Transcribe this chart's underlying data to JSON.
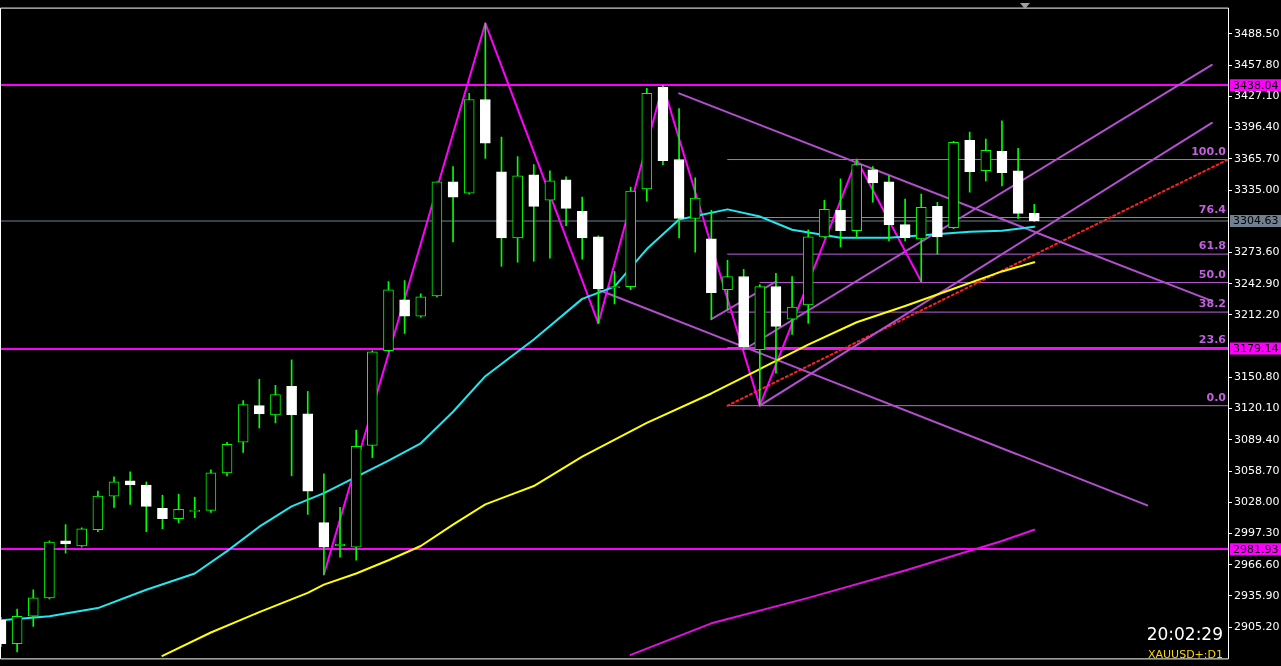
{
  "chart_data": {
    "type": "candlestick",
    "categories": [
      null,
      null,
      null,
      null,
      null,
      null,
      null,
      null,
      null,
      null,
      null,
      null,
      null,
      null,
      null,
      null,
      null,
      null,
      null,
      null,
      null,
      null,
      null,
      null,
      null,
      null,
      null,
      null,
      null,
      null,
      null,
      null,
      null,
      null,
      null,
      null,
      null,
      null,
      null,
      null,
      null,
      null,
      null,
      null,
      null,
      null,
      null,
      null,
      null,
      null,
      null,
      null,
      null,
      null,
      null,
      null,
      null,
      null,
      null,
      null,
      null,
      null,
      null,
      null,
      null,
      null,
      null,
      null,
      null,
      null,
      null,
      null,
      null,
      null,
      null,
      null,
      null
    ],
    "color": "#00ff00",
    "ohlc": [
      [
        2912,
        2915,
        2886,
        2889
      ],
      [
        2889,
        2923,
        2881,
        2916
      ],
      [
        2916,
        2942,
        2906,
        2934
      ],
      [
        2934,
        2990,
        2933,
        2989
      ],
      [
        2990,
        3006,
        2978,
        2987
      ],
      [
        2985,
        3003,
        2984,
        3002
      ],
      [
        3001,
        3039,
        2999,
        3034
      ],
      [
        3034,
        3053,
        3023,
        3048
      ],
      [
        3049,
        3058,
        3026,
        3045
      ],
      [
        3045,
        3048,
        2999,
        3024
      ],
      [
        3022,
        3035,
        3002,
        3012
      ],
      [
        3012,
        3036,
        3008,
        3021
      ],
      [
        3019,
        3033,
        3013,
        3020
      ],
      [
        3020,
        3060,
        3018,
        3057
      ],
      [
        3057,
        3087,
        3054,
        3085
      ],
      [
        3087,
        3128,
        3077,
        3124
      ],
      [
        3123,
        3149,
        3101,
        3115
      ],
      [
        3114,
        3143,
        3106,
        3134
      ],
      [
        3142,
        3168,
        3054,
        3114
      ],
      [
        3115,
        3137,
        3016,
        3039
      ],
      [
        3008,
        3056,
        2957,
        2984
      ],
      [
        2985,
        3023,
        2974,
        2987
      ],
      [
        2984,
        3099,
        2971,
        3083
      ],
      [
        3084,
        3177,
        3072,
        3176
      ],
      [
        3177,
        3245,
        3176,
        3237
      ],
      [
        3227,
        3246,
        3194,
        3211
      ],
      [
        3211,
        3233,
        3210,
        3230
      ],
      [
        3231,
        3343,
        3230,
        3343
      ],
      [
        3343,
        3358,
        3284,
        3328
      ],
      [
        3332,
        3430,
        3331,
        3424
      ],
      [
        3424,
        3499,
        3366,
        3381
      ],
      [
        3353,
        3387,
        3260,
        3288
      ],
      [
        3288,
        3368,
        3264,
        3349
      ],
      [
        3350,
        3360,
        3265,
        3319
      ],
      [
        3325,
        3354,
        3268,
        3344
      ],
      [
        3345,
        3348,
        3300,
        3317
      ],
      [
        3314,
        3328,
        3267,
        3288
      ],
      [
        3289,
        3290,
        3204,
        3238
      ],
      [
        3239,
        3255,
        3223,
        3240
      ],
      [
        3240,
        3338,
        3237,
        3334
      ],
      [
        3336,
        3435,
        3324,
        3430
      ],
      [
        3436,
        3438,
        3360,
        3364
      ],
      [
        3365,
        3415,
        3288,
        3307
      ],
      [
        3307,
        3347,
        3274,
        3327
      ],
      [
        3287,
        3315,
        3208,
        3234
      ],
      [
        3237,
        3266,
        3217,
        3250
      ],
      [
        3250,
        3257,
        3178,
        3181
      ],
      [
        3178,
        3242,
        3123,
        3240
      ],
      [
        3240,
        3253,
        3155,
        3201
      ],
      [
        3208,
        3250,
        3193,
        3220
      ],
      [
        3222,
        3296,
        3204,
        3289
      ],
      [
        3289,
        3325,
        3288,
        3316
      ],
      [
        3315,
        3346,
        3279,
        3295
      ],
      [
        3295,
        3365,
        3288,
        3360
      ],
      [
        3355,
        3358,
        3323,
        3342
      ],
      [
        3343,
        3349,
        3285,
        3301
      ],
      [
        3301,
        3326,
        3285,
        3288
      ],
      [
        3287,
        3331,
        3245,
        3318
      ],
      [
        3319,
        3323,
        3272,
        3289
      ],
      [
        3298,
        3383,
        3297,
        3382
      ],
      [
        3384,
        3392,
        3333,
        3353
      ],
      [
        3354,
        3385,
        3344,
        3374
      ],
      [
        3373,
        3403,
        3339,
        3352
      ],
      [
        3354,
        3376,
        3307,
        3312
      ],
      [
        3312,
        3321,
        3304,
        3304.63
      ],
      null,
      null,
      null,
      null,
      null,
      null,
      null,
      null,
      null,
      null,
      null,
      null
    ],
    "colors": [
      "#ffffff",
      null,
      null,
      null,
      "#ffffff",
      null,
      null,
      null,
      "#ffffff",
      "#ffffff",
      "#ffffff",
      null,
      null,
      null,
      null,
      null,
      "#ffffff",
      null,
      "#ffffff",
      "#ffffff",
      "#ffffff",
      null,
      null,
      null,
      null,
      "#ffffff",
      null,
      null,
      "#ffffff",
      null,
      "#ffffff",
      "#ffffff",
      null,
      "#ffffff",
      null,
      "#ffffff",
      "#ffffff",
      "#ffffff",
      null,
      null,
      null,
      "#ffffff",
      "#ffffff",
      null,
      "#ffffff",
      null,
      "#ffffff",
      null,
      "#ffffff",
      null,
      null,
      null,
      "#ffffff",
      null,
      "#ffffff",
      "#ffffff",
      "#ffffff",
      null,
      "#ffffff",
      null,
      "#ffffff",
      null,
      "#ffffff",
      "#ffffff",
      "#ffffff",
      null,
      null,
      null,
      null,
      null,
      null,
      null,
      null,
      null,
      null,
      null,
      null
    ],
    "series": [
      {
        "type": "line",
        "color": "#20e8f0",
        "values": [
          2912,
          null,
          null,
          2916,
          null,
          null,
          2924,
          null,
          null,
          2942,
          null,
          null,
          2958,
          null,
          2980,
          null,
          3004,
          null,
          3024,
          null,
          3037,
          null,
          null,
          null,
          3069,
          null,
          3086,
          null,
          3117,
          null,
          3152,
          null,
          null,
          3188,
          null,
          null,
          3228,
          null,
          3240,
          null,
          3277,
          null,
          3306,
          null,
          null,
          3316,
          null,
          3309,
          null,
          3296,
          null,
          null,
          3288,
          null,
          null,
          3288,
          null,
          null,
          null,
          null,
          3294,
          null,
          3295,
          null,
          3299,
          null,
          null,
          null,
          null,
          null,
          null,
          null,
          null,
          null,
          null,
          null,
          null
        ]
      },
      {
        "type": "line",
        "color": "#ffff00",
        "values": [
          null,
          null,
          null,
          null,
          null,
          null,
          null,
          null,
          null,
          null,
          2877,
          null,
          null,
          2900,
          null,
          null,
          2920,
          null,
          null,
          2939,
          2947,
          null,
          2958,
          null,
          2971,
          null,
          2985,
          null,
          3006,
          null,
          3026,
          null,
          null,
          3044,
          null,
          null,
          3073,
          null,
          null,
          null,
          3106,
          null,
          null,
          null,
          3135,
          null,
          null,
          3159,
          null,
          null,
          3183,
          null,
          null,
          3205,
          null,
          null,
          3221,
          null,
          null,
          3238,
          null,
          null,
          3255,
          null,
          3264,
          null,
          null,
          null,
          null,
          null,
          null,
          null,
          null,
          null,
          null,
          null,
          null
        ]
      },
      {
        "type": "line",
        "color": "#e010e0",
        "values": [
          null,
          null,
          null,
          null,
          null,
          null,
          null,
          null,
          null,
          null,
          null,
          null,
          null,
          null,
          null,
          null,
          null,
          null,
          null,
          null,
          null,
          null,
          null,
          null,
          null,
          null,
          null,
          null,
          null,
          null,
          null,
          null,
          null,
          null,
          null,
          null,
          null,
          null,
          null,
          2878,
          null,
          null,
          null,
          null,
          2909,
          null,
          null,
          null,
          null,
          null,
          2934,
          null,
          null,
          null,
          null,
          null,
          2961,
          null,
          null,
          null,
          null,
          null,
          2990,
          null,
          3001,
          null,
          null,
          null,
          null,
          null,
          null,
          null,
          null,
          null,
          null,
          null,
          null
        ]
      },
      {
        "type": "line",
        "color": "#ff00ff",
        "values": [
          null,
          null,
          null,
          null,
          null,
          null,
          null,
          null,
          null,
          null,
          null,
          null,
          null,
          null,
          null,
          null,
          null,
          null,
          null,
          null,
          2957,
          null,
          null,
          null,
          null,
          null,
          null,
          null,
          null,
          null,
          3499,
          null,
          null,
          null,
          null,
          null,
          null,
          3204,
          null,
          null,
          null,
          3438,
          null,
          null,
          null,
          null,
          null,
          3123,
          null,
          null,
          null,
          null,
          null,
          3365,
          null,
          null,
          null,
          3245,
          null,
          null,
          null,
          null,
          null,
          null,
          null,
          null,
          null,
          null,
          null,
          null,
          null,
          null,
          null,
          null,
          null,
          null,
          null
        ]
      },
      {
        "type": "line",
        "color": "#b44fd0",
        "values": [
          null,
          null,
          null,
          null,
          null,
          null,
          null,
          null,
          null,
          null,
          null,
          null,
          null,
          null,
          null,
          null,
          null,
          null,
          null,
          null,
          null,
          null,
          null,
          null,
          null,
          null,
          null,
          null,
          null,
          null,
          null,
          null,
          null,
          null,
          null,
          null,
          null,
          null,
          null,
          null,
          null,
          null,
          3430,
          null,
          null,
          null,
          null,
          null,
          null,
          null,
          null,
          null,
          null,
          null,
          null,
          null,
          null,
          null,
          null,
          null,
          null,
          null,
          null,
          null,
          null,
          null,
          null,
          null,
          null,
          null,
          null,
          null,
          null,
          null,
          null,
          3226,
          null
        ]
      },
      {
        "type": "line",
        "color": "#b44fd0",
        "values": [
          null,
          null,
          null,
          null,
          null,
          null,
          null,
          null,
          null,
          null,
          null,
          null,
          null,
          null,
          null,
          null,
          null,
          null,
          null,
          null,
          null,
          null,
          null,
          null,
          null,
          null,
          null,
          null,
          null,
          null,
          null,
          null,
          null,
          null,
          null,
          null,
          null,
          3237,
          null,
          null,
          null,
          null,
          null,
          null,
          null,
          null,
          null,
          null,
          null,
          null,
          null,
          null,
          null,
          null,
          null,
          null,
          null,
          null,
          null,
          null,
          null,
          null,
          null,
          null,
          null,
          null,
          null,
          null,
          null,
          null,
          null,
          3025,
          null,
          null,
          null,
          null,
          null
        ]
      },
      {
        "type": "line",
        "color": "#b44fd0",
        "values": [
          null,
          null,
          null,
          null,
          null,
          null,
          null,
          null,
          null,
          null,
          null,
          null,
          null,
          null,
          null,
          null,
          null,
          null,
          null,
          null,
          null,
          null,
          null,
          null,
          null,
          null,
          null,
          null,
          null,
          null,
          null,
          null,
          null,
          null,
          null,
          null,
          null,
          null,
          null,
          null,
          null,
          null,
          null,
          null,
          null,
          null,
          3178,
          null,
          null,
          null,
          null,
          null,
          null,
          null,
          null,
          null,
          null,
          null,
          null,
          null,
          null,
          null,
          null,
          null,
          null,
          null,
          null,
          null,
          null,
          null,
          null,
          null,
          null,
          null,
          null,
          3458,
          null
        ]
      },
      {
        "type": "line",
        "color": "#b44fd0",
        "values": [
          null,
          null,
          null,
          null,
          null,
          null,
          null,
          null,
          null,
          null,
          null,
          null,
          null,
          null,
          null,
          null,
          null,
          null,
          null,
          null,
          null,
          null,
          null,
          null,
          null,
          null,
          null,
          null,
          null,
          null,
          null,
          null,
          null,
          null,
          null,
          null,
          null,
          null,
          null,
          null,
          null,
          null,
          null,
          null,
          null,
          null,
          null,
          3123,
          null,
          null,
          null,
          null,
          null,
          null,
          null,
          null,
          null,
          null,
          null,
          null,
          null,
          null,
          null,
          null,
          null,
          null,
          null,
          null,
          null,
          null,
          null,
          null,
          null,
          null,
          null,
          3401,
          null
        ]
      },
      {
        "type": "line",
        "color": "#b44fd0",
        "values": [
          null,
          null,
          null,
          null,
          null,
          null,
          null,
          null,
          null,
          null,
          null,
          null,
          null,
          null,
          null,
          null,
          null,
          null,
          null,
          null,
          null,
          null,
          null,
          null,
          null,
          null,
          null,
          null,
          null,
          null,
          null,
          null,
          null,
          null,
          null,
          null,
          null,
          null,
          null,
          null,
          null,
          null,
          null,
          null,
          3208,
          null,
          null,
          null,
          3245,
          null,
          null,
          null,
          null,
          null,
          null,
          null,
          null,
          null,
          null,
          null,
          null,
          null,
          null,
          null,
          null,
          null,
          null,
          null,
          null,
          null,
          null,
          null,
          null,
          null,
          null,
          null,
          null
        ]
      },
      {
        "type": "line",
        "color": "#ff2020",
        "line_style": "dotted",
        "values": [
          null,
          null,
          null,
          null,
          null,
          null,
          null,
          null,
          null,
          null,
          null,
          null,
          null,
          null,
          null,
          null,
          null,
          null,
          null,
          null,
          null,
          null,
          null,
          null,
          null,
          null,
          null,
          null,
          null,
          null,
          null,
          null,
          null,
          null,
          null,
          null,
          null,
          null,
          null,
          null,
          null,
          null,
          null,
          null,
          null,
          3123,
          null,
          null,
          null,
          null,
          null,
          null,
          null,
          null,
          null,
          null,
          null,
          null,
          null,
          null,
          null,
          null,
          null,
          null,
          null,
          null,
          null,
          null,
          null,
          null,
          null,
          null,
          null,
          null,
          null,
          null,
          3365
        ]
      },
      {
        "type": "line",
        "name": "100.0",
        "color": "#c060e0",
        "values": [
          null,
          null,
          null,
          null,
          null,
          null,
          null,
          null,
          null,
          null,
          null,
          null,
          null,
          null,
          null,
          null,
          null,
          null,
          null,
          null,
          null,
          null,
          null,
          null,
          null,
          null,
          null,
          null,
          null,
          null,
          null,
          null,
          null,
          null,
          null,
          null,
          null,
          null,
          null,
          null,
          null,
          null,
          null,
          null,
          null,
          3365,
          null,
          null,
          null,
          null,
          null,
          null,
          null,
          null,
          null,
          null,
          null,
          null,
          null,
          null,
          null,
          null,
          null,
          null,
          null,
          null,
          null,
          null,
          null,
          null,
          null,
          null,
          null,
          null,
          null,
          null,
          3365
        ]
      },
      {
        "type": "line",
        "name": "76.4",
        "color": "#c060e0",
        "values": [
          null,
          null,
          null,
          null,
          null,
          null,
          null,
          null,
          null,
          null,
          null,
          null,
          null,
          null,
          null,
          null,
          null,
          null,
          null,
          null,
          null,
          null,
          null,
          null,
          null,
          null,
          null,
          null,
          null,
          null,
          null,
          null,
          null,
          null,
          null,
          null,
          null,
          null,
          null,
          null,
          null,
          null,
          null,
          null,
          null,
          3308,
          null,
          null,
          null,
          null,
          null,
          null,
          null,
          null,
          null,
          null,
          null,
          null,
          null,
          null,
          null,
          null,
          null,
          null,
          null,
          null,
          null,
          null,
          null,
          null,
          null,
          null,
          null,
          null,
          null,
          null,
          3308
        ]
      },
      {
        "type": "line",
        "name": "61.8",
        "color": "#c060e0",
        "values": [
          null,
          null,
          null,
          null,
          null,
          null,
          null,
          null,
          null,
          null,
          null,
          null,
          null,
          null,
          null,
          null,
          null,
          null,
          null,
          null,
          null,
          null,
          null,
          null,
          null,
          null,
          null,
          null,
          null,
          null,
          null,
          null,
          null,
          null,
          null,
          null,
          null,
          null,
          null,
          null,
          null,
          null,
          null,
          null,
          null,
          3272,
          null,
          null,
          null,
          null,
          null,
          null,
          null,
          null,
          null,
          null,
          null,
          null,
          null,
          null,
          null,
          null,
          null,
          null,
          null,
          null,
          null,
          null,
          null,
          null,
          null,
          null,
          null,
          null,
          null,
          null,
          3272
        ]
      },
      {
        "type": "line",
        "name": "50.0",
        "color": "#c060e0",
        "values": [
          null,
          null,
          null,
          null,
          null,
          null,
          null,
          null,
          null,
          null,
          null,
          null,
          null,
          null,
          null,
          null,
          null,
          null,
          null,
          null,
          null,
          null,
          null,
          null,
          null,
          null,
          null,
          null,
          null,
          null,
          null,
          null,
          null,
          null,
          null,
          null,
          null,
          null,
          null,
          null,
          null,
          null,
          null,
          null,
          null,
          null,
          null,
          3244,
          null,
          null,
          null,
          null,
          null,
          null,
          null,
          null,
          null,
          null,
          null,
          null,
          null,
          null,
          null,
          null,
          null,
          null,
          null,
          null,
          null,
          null,
          null,
          null,
          null,
          null,
          null,
          null,
          3244
        ]
      },
      {
        "type": "line",
        "name": "38.2",
        "color": "#c060e0",
        "values": [
          null,
          null,
          null,
          null,
          null,
          null,
          null,
          null,
          null,
          null,
          null,
          null,
          null,
          null,
          null,
          null,
          null,
          null,
          null,
          null,
          null,
          null,
          null,
          null,
          null,
          null,
          null,
          null,
          null,
          null,
          null,
          null,
          null,
          null,
          null,
          null,
          null,
          null,
          null,
          null,
          null,
          null,
          null,
          null,
          null,
          3215,
          null,
          null,
          null,
          null,
          null,
          null,
          null,
          null,
          null,
          null,
          null,
          null,
          null,
          null,
          null,
          null,
          null,
          null,
          null,
          null,
          null,
          null,
          null,
          null,
          null,
          null,
          null,
          null,
          null,
          null,
          3215
        ]
      },
      {
        "type": "line",
        "name": "23.6",
        "color": "#c060e0",
        "values": [
          null,
          null,
          null,
          null,
          null,
          null,
          null,
          null,
          null,
          null,
          null,
          null,
          null,
          null,
          null,
          null,
          null,
          null,
          null,
          null,
          null,
          null,
          null,
          null,
          null,
          null,
          null,
          null,
          null,
          null,
          null,
          null,
          null,
          null,
          null,
          null,
          null,
          null,
          null,
          null,
          null,
          null,
          null,
          null,
          null,
          3180,
          null,
          null,
          null,
          null,
          null,
          null,
          null,
          null,
          null,
          null,
          null,
          null,
          null,
          null,
          null,
          null,
          null,
          null,
          null,
          null,
          null,
          null,
          null,
          null,
          null,
          null,
          null,
          null,
          null,
          null,
          3180
        ]
      },
      {
        "type": "line",
        "name": "0.0",
        "color": "#c060e0",
        "values": [
          null,
          null,
          null,
          null,
          null,
          null,
          null,
          null,
          null,
          null,
          null,
          null,
          null,
          null,
          null,
          null,
          null,
          null,
          null,
          null,
          null,
          null,
          null,
          null,
          null,
          null,
          null,
          null,
          null,
          null,
          null,
          null,
          null,
          null,
          null,
          null,
          null,
          null,
          null,
          null,
          null,
          null,
          null,
          null,
          null,
          3123,
          null,
          null,
          null,
          null,
          null,
          null,
          null,
          null,
          null,
          null,
          null,
          null,
          null,
          null,
          null,
          null,
          null,
          null,
          null,
          null,
          null,
          null,
          null,
          null,
          null,
          null,
          null,
          null,
          null,
          null,
          3123
        ]
      }
    ],
    "ylim": [
      2875.5,
      3513.4
    ],
    "yticks": [
      {
        "value": 3488.5,
        "label": "3488.50"
      },
      {
        "value": 3457.8,
        "label": "3457.80"
      },
      {
        "value": 3427.1,
        "label": "3427.10"
      },
      {
        "value": 3396.4,
        "label": "3396.40"
      },
      {
        "value": 3365.7,
        "label": "3365.70"
      },
      {
        "value": 3335,
        "label": "3335.00"
      },
      {
        "value": 3273.6,
        "label": "3273.60"
      },
      {
        "value": 3242.9,
        "label": "3242.90"
      },
      {
        "value": 3212.2,
        "label": "3212.20"
      },
      {
        "value": 3150.8,
        "label": "3150.80"
      },
      {
        "value": 3120.1,
        "label": "3120.10"
      },
      {
        "value": 3089.4,
        "label": "3089.40"
      },
      {
        "value": 3058.7,
        "label": "3058.70"
      },
      {
        "value": 3028,
        "label": "3028.00"
      },
      {
        "value": 2997.3,
        "label": "2997.30"
      },
      {
        "value": 2966.6,
        "label": "2966.60"
      },
      {
        "value": 2935.9,
        "label": "2935.90"
      },
      {
        "value": 2905.2,
        "label": "2905.20"
      }
    ],
    "ref_lines": [
      {
        "axis": "y",
        "value": 3438.04,
        "label": "3438.04",
        "color": "#ff00ff"
      },
      {
        "axis": "y",
        "value": 3179.14,
        "label": "3179.14",
        "color": "#ff00ff"
      },
      {
        "axis": "y",
        "value": 2981.93,
        "label": "2981.93",
        "color": "#ff00ff"
      },
      {
        "axis": "y",
        "value": 3304.63,
        "label": "3304.63",
        "color": "#708090"
      }
    ],
    "tick_labels": "y",
    "annotations": [
      "20:02:29",
      "XAUUSD+:D1"
    ]
  }
}
